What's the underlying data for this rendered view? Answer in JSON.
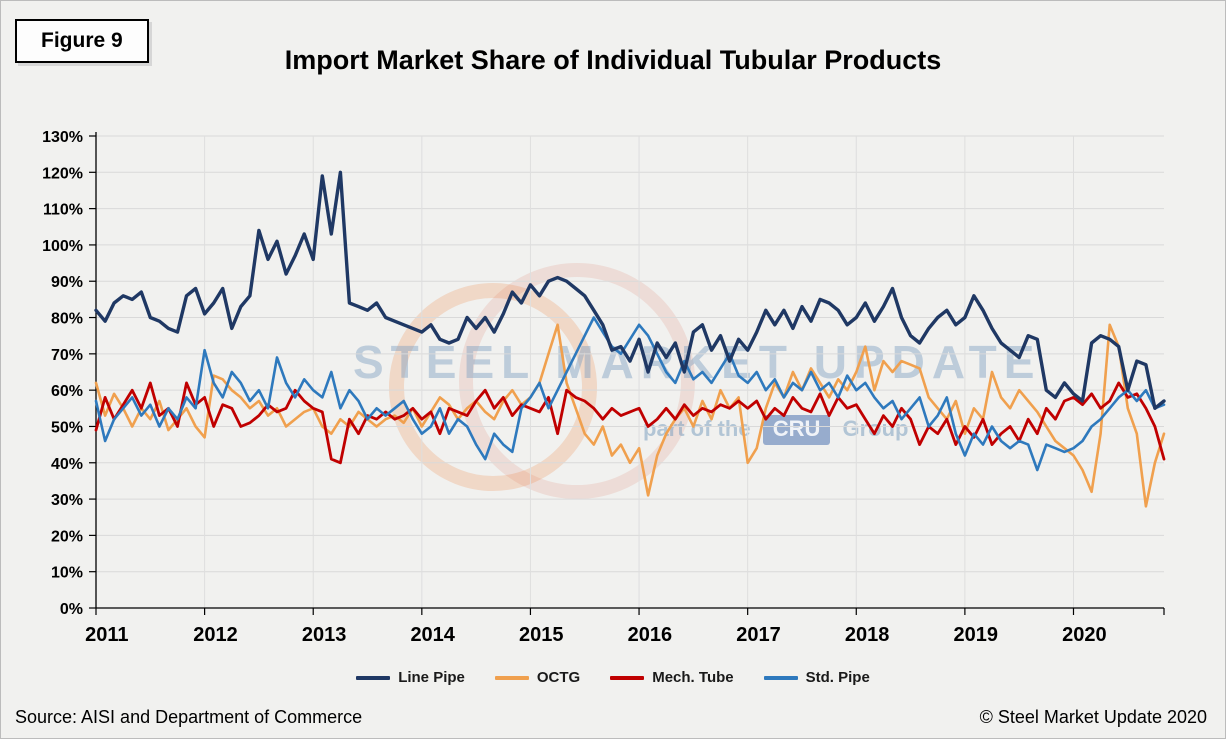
{
  "figure_label": "Figure 9",
  "source": "Source: AISI and Department of Commerce",
  "copyright": "© Steel Market Update 2020",
  "watermark": {
    "line1": "STEEL MARKET UPDATE",
    "part_of_the": "part of the",
    "cru": "CRU",
    "group": "Group"
  },
  "chart_data": {
    "type": "line",
    "title": "Import Market Share of Individual Tubular Products",
    "xlabel": "",
    "ylabel": "",
    "ylim": [
      0,
      130
    ],
    "ytick_step": 10,
    "ytick_format": "percent",
    "grid": true,
    "legend_position": "bottom",
    "x_start_year": 2011,
    "points_per_year": 12,
    "year_labels": [
      "2011",
      "2012",
      "2013",
      "2014",
      "2015",
      "2016",
      "2017",
      "2018",
      "2019",
      "2020"
    ],
    "series": [
      {
        "name": "Line Pipe",
        "color": "#1F3864",
        "values": [
          82,
          79,
          84,
          86,
          85,
          87,
          80,
          79,
          77,
          76,
          86,
          88,
          81,
          84,
          88,
          77,
          83,
          86,
          104,
          96,
          101,
          92,
          97,
          103,
          96,
          119,
          103,
          120,
          84,
          83,
          82,
          84,
          80,
          79,
          78,
          77,
          76,
          78,
          74,
          73,
          74,
          80,
          77,
          80,
          76,
          81,
          87,
          84,
          89,
          86,
          90,
          91,
          90,
          88,
          86,
          82,
          78,
          71,
          72,
          68,
          74,
          65,
          73,
          69,
          73,
          65,
          76,
          78,
          71,
          75,
          68,
          74,
          71,
          76,
          82,
          78,
          82,
          77,
          83,
          79,
          85,
          84,
          82,
          78,
          80,
          84,
          79,
          83,
          88,
          80,
          75,
          73,
          77,
          80,
          82,
          78,
          80,
          86,
          82,
          77,
          73,
          71,
          69,
          75,
          74,
          60,
          58,
          62,
          59,
          57,
          73,
          75,
          74,
          72,
          60,
          68,
          67,
          55,
          57
        ]
      },
      {
        "name": "OCTG",
        "color": "#F0A04E",
        "values": [
          62,
          53,
          59,
          55,
          50,
          55,
          52,
          57,
          49,
          52,
          55,
          50,
          47,
          64,
          63,
          60,
          58,
          55,
          57,
          53,
          55,
          50,
          52,
          54,
          55,
          50,
          48,
          52,
          50,
          54,
          52,
          50,
          52,
          53,
          51,
          55,
          50,
          54,
          58,
          56,
          52,
          55,
          57,
          54,
          52,
          57,
          60,
          56,
          58,
          62,
          70,
          78,
          62,
          55,
          48,
          45,
          50,
          42,
          45,
          40,
          44,
          31,
          42,
          48,
          52,
          55,
          50,
          57,
          52,
          60,
          55,
          58,
          40,
          44,
          55,
          62,
          58,
          65,
          60,
          66,
          62,
          58,
          63,
          60,
          65,
          72,
          60,
          68,
          65,
          68,
          67,
          66,
          58,
          55,
          52,
          57,
          48,
          55,
          52,
          65,
          58,
          55,
          60,
          57,
          54,
          50,
          46,
          44,
          42,
          38,
          32,
          48,
          78,
          72,
          55,
          48,
          28,
          40,
          48
        ]
      },
      {
        "name": "Mech. Tube",
        "color": "#C00000",
        "values": [
          49,
          58,
          52,
          56,
          60,
          55,
          62,
          53,
          55,
          50,
          62,
          56,
          58,
          50,
          56,
          55,
          50,
          51,
          53,
          56,
          54,
          55,
          60,
          57,
          55,
          54,
          41,
          40,
          52,
          48,
          53,
          52,
          54,
          52,
          53,
          55,
          52,
          54,
          48,
          55,
          54,
          53,
          57,
          60,
          55,
          58,
          53,
          56,
          55,
          54,
          58,
          48,
          60,
          58,
          57,
          55,
          52,
          55,
          53,
          54,
          55,
          50,
          52,
          55,
          52,
          56,
          53,
          55,
          54,
          56,
          55,
          57,
          55,
          57,
          52,
          55,
          53,
          58,
          55,
          54,
          59,
          53,
          58,
          55,
          56,
          52,
          48,
          53,
          50,
          55,
          52,
          45,
          50,
          48,
          52,
          45,
          50,
          47,
          52,
          45,
          48,
          50,
          46,
          52,
          48,
          55,
          52,
          57,
          58,
          56,
          59,
          55,
          57,
          62,
          58,
          59,
          55,
          50,
          41
        ]
      },
      {
        "name": "Std. Pipe",
        "color": "#2E79BD",
        "values": [
          57,
          46,
          52,
          55,
          58,
          53,
          56,
          50,
          55,
          52,
          58,
          55,
          71,
          62,
          58,
          65,
          62,
          57,
          60,
          55,
          69,
          62,
          58,
          63,
          60,
          58,
          65,
          55,
          60,
          57,
          52,
          55,
          53,
          55,
          57,
          52,
          48,
          50,
          55,
          48,
          52,
          50,
          45,
          41,
          48,
          45,
          43,
          55,
          58,
          62,
          55,
          60,
          65,
          70,
          75,
          80,
          76,
          72,
          70,
          74,
          78,
          75,
          70,
          65,
          62,
          68,
          63,
          65,
          62,
          66,
          70,
          64,
          62,
          65,
          60,
          63,
          58,
          62,
          60,
          65,
          60,
          62,
          58,
          64,
          60,
          62,
          58,
          55,
          57,
          52,
          55,
          58,
          50,
          53,
          58,
          48,
          42,
          48,
          45,
          50,
          46,
          44,
          46,
          45,
          38,
          45,
          44,
          43,
          44,
          46,
          50,
          52,
          55,
          58,
          60,
          57,
          60,
          55,
          56
        ]
      }
    ]
  }
}
